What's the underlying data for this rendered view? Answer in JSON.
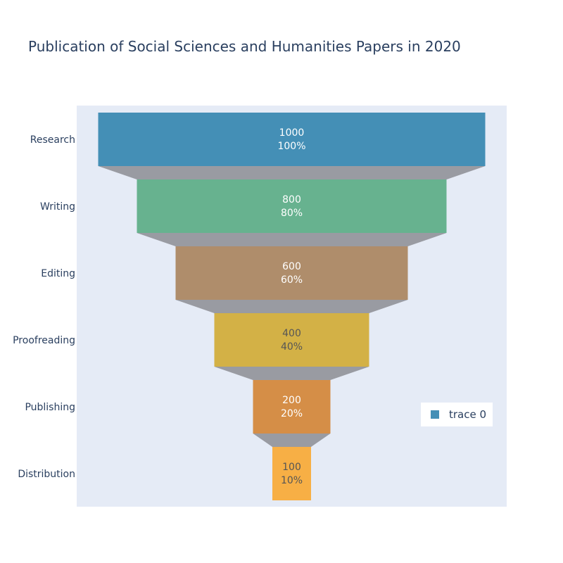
{
  "chart_data": {
    "type": "funnel",
    "title": "Publication of Social Sciences and Humanities Papers in 2020",
    "categories": [
      "Research",
      "Writing",
      "Editing",
      "Proofreading",
      "Publishing",
      "Distribution"
    ],
    "values": [
      1000,
      800,
      600,
      400,
      200,
      100
    ],
    "percent_labels": [
      "100%",
      "80%",
      "60%",
      "40%",
      "20%",
      "10%"
    ],
    "colors": [
      "#448fb6",
      "#67b28f",
      "#af8d6b",
      "#d3b146",
      "#d58e47",
      "#f7af45"
    ],
    "label_colors": [
      "#ffffff",
      "#ffffff",
      "#ffffff",
      "#555555",
      "#ffffff",
      "#555555"
    ],
    "connector_color": "#999ba2",
    "plot_background": "#e5ebf6",
    "legend": {
      "entries": [
        "trace 0"
      ],
      "placement": "bottom-right"
    }
  }
}
